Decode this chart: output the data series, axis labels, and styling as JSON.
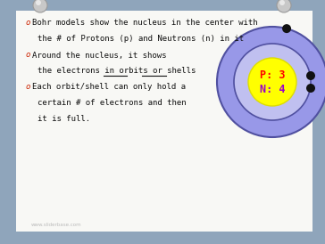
{
  "background_color": "#8fa5bb",
  "paper_color": "#f8f8f5",
  "bullet_color": "#cc2200",
  "text_color": "#111111",
  "lines": [
    {
      "text": "Bohr models show the nucleus in the center with",
      "bullet": true,
      "indent": false
    },
    {
      "text": "the # of Protons (p) and Neutrons (n) in it",
      "bullet": false,
      "indent": true
    },
    {
      "text": "Around the nucleus, it shows",
      "bullet": true,
      "indent": false
    },
    {
      "text": "the electrons in orbits or shells",
      "bullet": false,
      "indent": true,
      "underline": [
        "orbits",
        "shells"
      ]
    },
    {
      "text": "Each orbit/shell can only hold a",
      "bullet": true,
      "indent": false
    },
    {
      "text": "certain # of electrons and then",
      "bullet": false,
      "indent": true
    },
    {
      "text": "it is full.",
      "bullet": false,
      "indent": true
    }
  ],
  "nucleus_color": "#ffff00",
  "inner_orbit_color": "#c0c0f0",
  "outer_orbit_color": "#9898e8",
  "orbit_edge_color": "#5050a0",
  "electron_color": "#111111",
  "nucleus_text_p": "P: 3",
  "nucleus_text_n": "N: 4",
  "nucleus_text_color_p": "#ff0000",
  "nucleus_text_color_n": "#9900cc",
  "watermark": "www.sliderbase.com",
  "watermark_color": "#bbbbbb",
  "pin_color": "#c8c8c8",
  "pin_edge_color": "#999999"
}
